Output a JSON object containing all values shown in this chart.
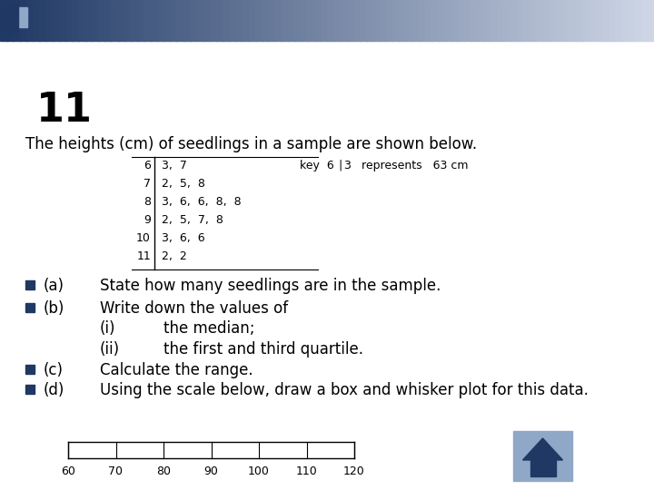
{
  "title_number": "11",
  "subtitle": "The heights (cm) of seedlings in a sample are shown below.",
  "stem_leaves": [
    {
      "stem": "6",
      "leaves": "3,  7"
    },
    {
      "stem": "7",
      "leaves": "2,  5,  8"
    },
    {
      "stem": "8",
      "leaves": "3,  6,  6,  8,  8"
    },
    {
      "stem": "9",
      "leaves": "2,  5,  7,  8"
    },
    {
      "stem": "10",
      "leaves": "3,  6,  6"
    },
    {
      "stem": "11",
      "leaves": "2,  2"
    }
  ],
  "key_text_parts": [
    "key  6",
    "3",
    "     represents   63 cm"
  ],
  "bullet_color": "#1F3864",
  "bullets": [
    {
      "label": "(a)",
      "text": "State how many seedlings are in the sample.",
      "indent": false,
      "sub": false
    },
    {
      "label": "(b)",
      "text": "Write down the values of",
      "indent": false,
      "sub": false
    },
    {
      "label": "(i)",
      "text": "the median;",
      "indent": true,
      "sub": true
    },
    {
      "label": "(ii)",
      "text": "the first and third quartile.",
      "indent": true,
      "sub": true
    },
    {
      "label": "(c)",
      "text": "Calculate the range.",
      "indent": false,
      "sub": false
    },
    {
      "label": "(d)",
      "text": "Using the scale below, draw a box and whisker plot for this data.",
      "indent": false,
      "sub": false
    }
  ],
  "scale_min": 60,
  "scale_max": 120,
  "scale_step": 10,
  "background_color": "#ffffff",
  "home_button_color": "#8FA8C8",
  "home_button_arrow_color": "#1F3864"
}
